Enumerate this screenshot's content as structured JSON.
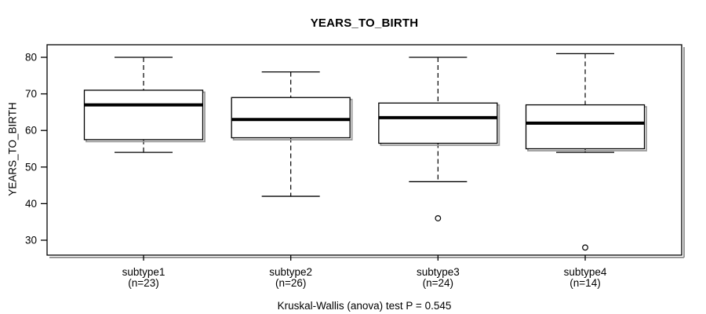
{
  "title": "YEARS_TO_BIRTH",
  "y_axis": {
    "label": "YEARS_TO_BIRTH"
  },
  "footer": "Kruskal-Wallis (anova) test P = 0.545",
  "chart_data": {
    "type": "boxplot",
    "title": "YEARS_TO_BIRTH",
    "xlabel": "",
    "ylabel": "YEARS_TO_BIRTH",
    "ylim": [
      26,
      83.5
    ],
    "yticks": [
      30,
      40,
      50,
      60,
      70,
      80
    ],
    "grid": false,
    "legend": "none",
    "categories": [
      "subtype1",
      "subtype2",
      "subtype3",
      "subtype4"
    ],
    "x_tick_labels": [
      [
        "subtype1",
        "(n=23)"
      ],
      [
        "subtype2",
        "(n=26)"
      ],
      [
        "subtype3",
        "(n=24)"
      ],
      [
        "subtype4",
        "(n=14)"
      ]
    ],
    "series": [
      {
        "name": "subtype1",
        "n": 23,
        "whisker_low": 54,
        "q1": 57.5,
        "median": 67,
        "q3": 71,
        "whisker_high": 80,
        "outliers": []
      },
      {
        "name": "subtype2",
        "n": 26,
        "whisker_low": 42,
        "q1": 58,
        "median": 63,
        "q3": 69,
        "whisker_high": 76,
        "outliers": []
      },
      {
        "name": "subtype3",
        "n": 24,
        "whisker_low": 46,
        "q1": 56.5,
        "median": 63.5,
        "q3": 67.5,
        "whisker_high": 80,
        "outliers": [
          36
        ]
      },
      {
        "name": "subtype4",
        "n": 14,
        "whisker_low": 54,
        "q1": 55,
        "median": 62,
        "q3": 67,
        "whisker_high": 81,
        "outliers": [
          28
        ]
      }
    ],
    "annotation": "Kruskal-Wallis (anova) test P = 0.545",
    "colors": {
      "line": "#000000",
      "shadow": "#9a9a9a",
      "box_fill": "#ffffff",
      "background": "#ffffff"
    }
  }
}
